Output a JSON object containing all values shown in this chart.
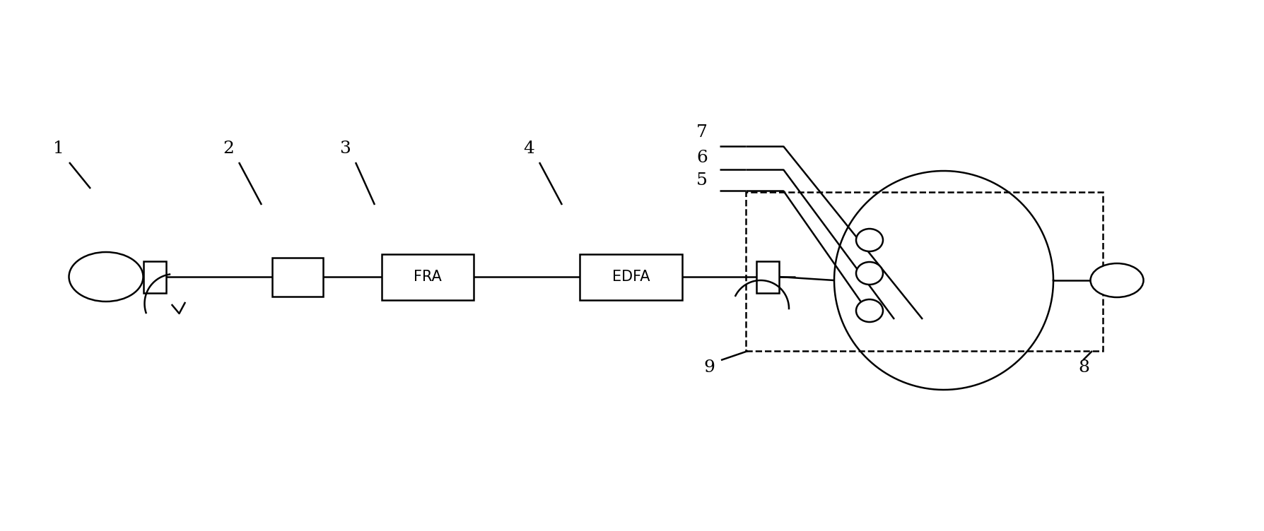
{
  "bg_color": "#ffffff",
  "line_color": "#000000",
  "lw": 1.8,
  "fig_width": 17.88,
  "fig_height": 7.52,
  "dpi": 100
}
